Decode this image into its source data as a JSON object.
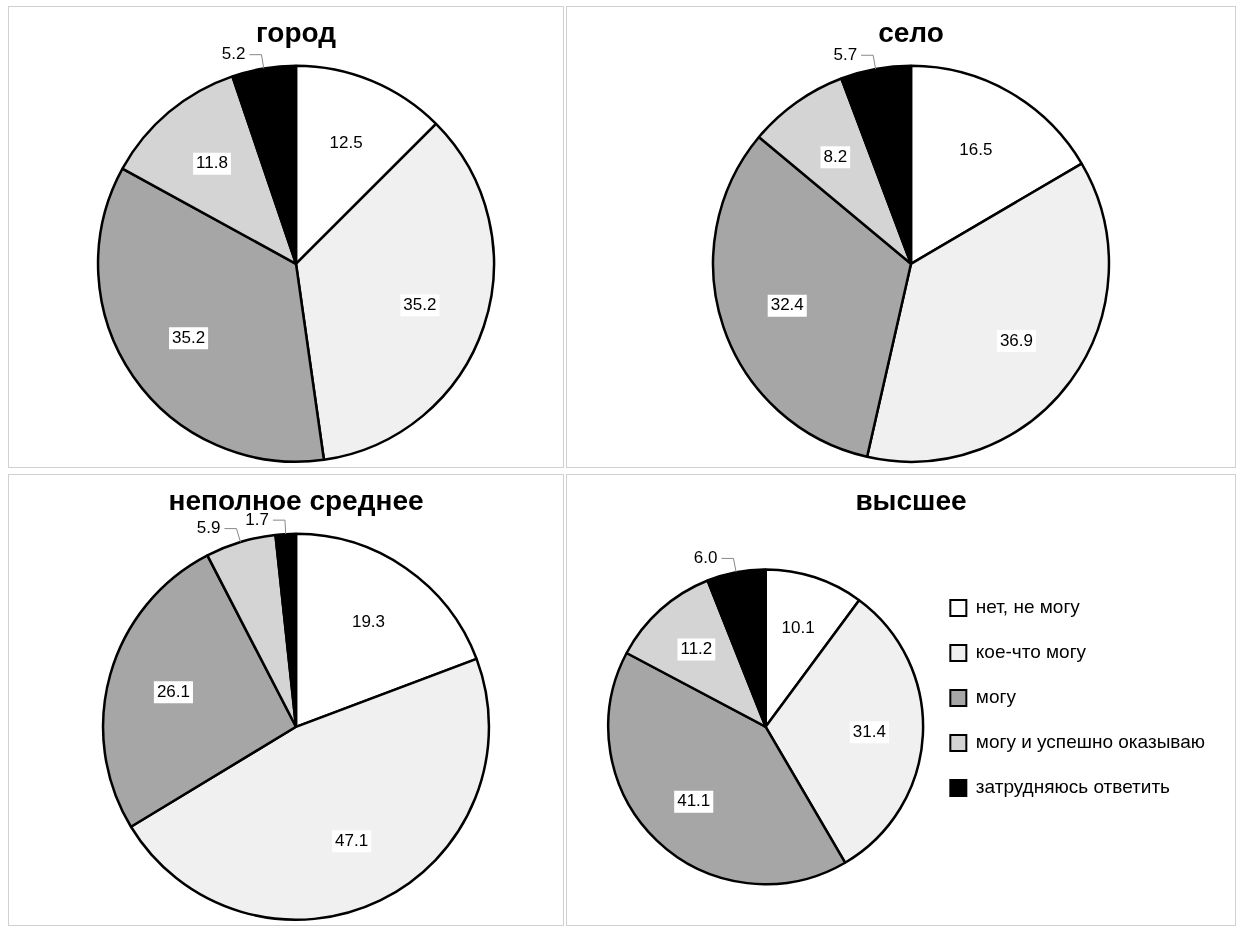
{
  "chart_data": [
    {
      "type": "pie",
      "title": "город",
      "categories": [
        null,
        null,
        null,
        null,
        null
      ],
      "values": [
        12.5,
        35.2,
        35.2,
        11.8,
        5.2
      ],
      "value_labels": [
        "12.5",
        "35.2",
        "35.2",
        "11.8",
        "5.2"
      ],
      "colors": [
        "#ffffff",
        "#f0f0f0",
        "#a6a6a6",
        "#d4d4d4",
        "#000000"
      ],
      "legend": false
    },
    {
      "type": "pie",
      "title": "село",
      "categories": [
        null,
        null,
        null,
        null,
        null
      ],
      "values": [
        16.5,
        36.9,
        32.4,
        8.2,
        5.7
      ],
      "value_labels": [
        "16.5",
        "36.9",
        "32.4",
        "8.2",
        "5.7"
      ],
      "colors": [
        "#ffffff",
        "#f0f0f0",
        "#a6a6a6",
        "#d4d4d4",
        "#000000"
      ],
      "legend": false
    },
    {
      "type": "pie",
      "title": "неполное среднее",
      "categories": [
        null,
        null,
        null,
        null,
        null
      ],
      "values": [
        19.3,
        47.1,
        26.1,
        5.9,
        1.7
      ],
      "value_labels": [
        "19.3",
        "47.1",
        "26.1",
        "5.9",
        "1.7"
      ],
      "colors": [
        "#ffffff",
        "#f0f0f0",
        "#a6a6a6",
        "#d4d4d4",
        "#000000"
      ],
      "legend": false
    },
    {
      "type": "pie",
      "title": "высшее",
      "categories": [
        "нет, не могу",
        "кое-что могу",
        "могу",
        "могу и успешно оказываю",
        "затрудняюсь ответить"
      ],
      "values": [
        10.1,
        31.4,
        41.1,
        11.2,
        6.0
      ],
      "value_labels": [
        "10.1",
        "31.4",
        "41.1",
        "11.2",
        "6.0"
      ],
      "colors": [
        "#ffffff",
        "#f0f0f0",
        "#a6a6a6",
        "#d4d4d4",
        "#000000"
      ],
      "legend": "right"
    }
  ]
}
